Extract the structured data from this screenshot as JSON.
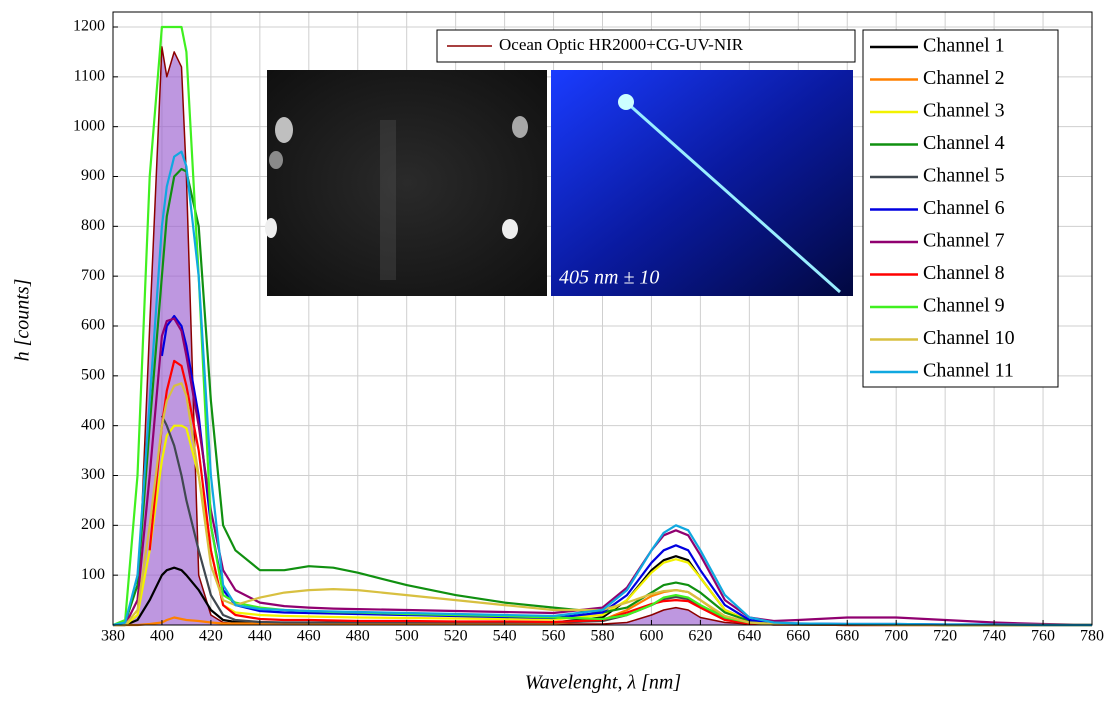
{
  "chart_data": {
    "type": "line",
    "y_label": "h [counts]",
    "x_label": "Wavelenght, λ [nm]",
    "annotation": "405 nm ± 10",
    "grid": true,
    "legend_position": "upper right",
    "xlim": [
      380,
      780
    ],
    "ylim": [
      0,
      1200
    ],
    "xticks": [
      380,
      400,
      420,
      440,
      460,
      480,
      500,
      520,
      540,
      560,
      580,
      600,
      620,
      640,
      660,
      680,
      700,
      720,
      740,
      760,
      780
    ],
    "yticks": [
      100,
      200,
      300,
      400,
      500,
      600,
      700,
      800,
      900,
      1000,
      1100,
      1200
    ],
    "x": [
      380,
      385,
      390,
      395,
      400,
      402,
      405,
      408,
      410,
      415,
      420,
      425,
      430,
      440,
      450,
      460,
      470,
      480,
      500,
      520,
      540,
      560,
      580,
      590,
      600,
      605,
      610,
      615,
      620,
      630,
      640,
      650,
      660,
      680,
      700,
      720,
      740,
      760,
      780
    ],
    "series": [
      {
        "name": "Ocean Optic HR2000+CG-UV-NIR",
        "color": "#8b0000",
        "fill_color": "#9b5fd0",
        "values": [
          0,
          0,
          20,
          600,
          1160,
          1100,
          1150,
          1120,
          900,
          100,
          20,
          5,
          3,
          2,
          2,
          2,
          2,
          2,
          2,
          2,
          2,
          2,
          2,
          5,
          20,
          30,
          35,
          30,
          15,
          5,
          2,
          1,
          1,
          0,
          0,
          0,
          0,
          0,
          0
        ]
      },
      {
        "name": "Channel 1",
        "color": "#000000",
        "values": [
          0,
          0,
          10,
          50,
          100,
          110,
          115,
          110,
          100,
          70,
          30,
          10,
          6,
          4,
          4,
          4,
          4,
          4,
          4,
          4,
          4,
          5,
          15,
          50,
          110,
          130,
          138,
          130,
          95,
          30,
          8,
          3,
          2,
          1,
          1,
          0,
          0,
          0,
          0
        ]
      },
      {
        "name": "Channel 2",
        "color": "#ff8000",
        "values": [
          0,
          0,
          0,
          2,
          5,
          10,
          15,
          12,
          10,
          8,
          5,
          3,
          3,
          3,
          3,
          3,
          3,
          3,
          3,
          3,
          3,
          3,
          10,
          30,
          58,
          66,
          70,
          66,
          50,
          15,
          4,
          1,
          1,
          0,
          0,
          0,
          0,
          0,
          0
        ]
      },
      {
        "name": "Channel 3",
        "color": "#f2f200",
        "values": [
          0,
          0,
          20,
          150,
          330,
          380,
          400,
          400,
          395,
          300,
          150,
          40,
          25,
          20,
          18,
          17,
          16,
          15,
          14,
          13,
          12,
          11,
          20,
          50,
          105,
          125,
          132,
          125,
          95,
          30,
          8,
          3,
          2,
          1,
          1,
          0,
          0,
          0,
          0
        ]
      },
      {
        "name": "Channel 4",
        "color": "#109010",
        "values": [
          0,
          5,
          80,
          400,
          700,
          820,
          900,
          915,
          910,
          800,
          450,
          200,
          150,
          110,
          110,
          118,
          115,
          105,
          80,
          60,
          45,
          35,
          25,
          35,
          65,
          80,
          85,
          80,
          65,
          25,
          8,
          3,
          2,
          1,
          1,
          0,
          0,
          0,
          0
        ]
      },
      {
        "name": "Channel 5",
        "color": "#404850",
        "values": [
          null,
          null,
          null,
          null,
          420,
          400,
          360,
          300,
          250,
          150,
          60,
          20,
          10,
          6,
          5,
          5,
          5,
          5,
          5,
          5,
          5,
          5,
          8,
          20,
          40,
          52,
          56,
          52,
          38,
          12,
          3,
          1,
          1,
          0,
          0,
          0,
          0,
          0,
          0
        ]
      },
      {
        "name": "Channel 6",
        "color": "#0000e0",
        "values": [
          null,
          null,
          null,
          null,
          540,
          600,
          620,
          600,
          560,
          420,
          200,
          70,
          40,
          28,
          25,
          24,
          23,
          22,
          20,
          18,
          16,
          14,
          25,
          60,
          125,
          150,
          160,
          150,
          110,
          40,
          10,
          4,
          3,
          2,
          2,
          1,
          1,
          0,
          0
        ]
      },
      {
        "name": "Channel 7",
        "color": "#900070",
        "values": [
          0,
          0,
          50,
          300,
          580,
          610,
          615,
          590,
          540,
          400,
          230,
          110,
          70,
          45,
          38,
          35,
          33,
          32,
          30,
          28,
          26,
          24,
          35,
          75,
          150,
          180,
          190,
          180,
          140,
          50,
          15,
          8,
          10,
          15,
          15,
          10,
          5,
          2,
          0
        ]
      },
      {
        "name": "Channel 8",
        "color": "#ff0000",
        "values": [
          null,
          null,
          null,
          150,
          400,
          470,
          530,
          520,
          480,
          350,
          150,
          40,
          20,
          12,
          10,
          10,
          9,
          8,
          8,
          7,
          7,
          6,
          10,
          25,
          42,
          48,
          50,
          48,
          35,
          10,
          3,
          1,
          1,
          0,
          0,
          0,
          0,
          0,
          0
        ]
      },
      {
        "name": "Channel 9",
        "color": "#40f020",
        "values": [
          0,
          10,
          300,
          900,
          1200,
          1200,
          1200,
          1200,
          1150,
          700,
          200,
          60,
          45,
          35,
          30,
          28,
          26,
          25,
          22,
          20,
          18,
          15,
          12,
          20,
          40,
          55,
          60,
          55,
          40,
          15,
          5,
          2,
          1,
          1,
          1,
          0,
          0,
          0,
          0
        ]
      },
      {
        "name": "Channel 10",
        "color": "#d8c040",
        "values": [
          0,
          0,
          30,
          200,
          400,
          450,
          480,
          485,
          460,
          300,
          120,
          50,
          40,
          55,
          65,
          70,
          72,
          70,
          60,
          50,
          40,
          30,
          30,
          45,
          62,
          68,
          70,
          66,
          50,
          18,
          5,
          2,
          1,
          1,
          0,
          0,
          0,
          0,
          0
        ]
      },
      {
        "name": "Channel 11",
        "color": "#10a8e0",
        "values": [
          0,
          5,
          100,
          450,
          800,
          880,
          940,
          950,
          920,
          700,
          300,
          80,
          40,
          32,
          30,
          28,
          27,
          26,
          24,
          22,
          20,
          18,
          30,
          70,
          150,
          185,
          200,
          190,
          150,
          60,
          15,
          5,
          3,
          2,
          2,
          1,
          1,
          0,
          0
        ]
      }
    ]
  }
}
